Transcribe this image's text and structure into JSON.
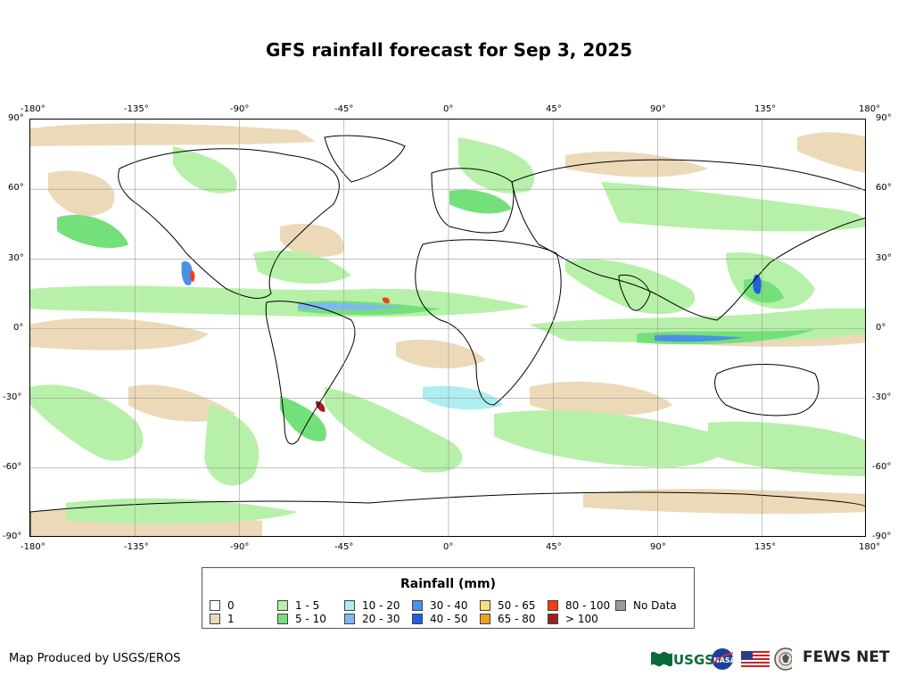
{
  "title": "GFS rainfall forecast for Sep 3, 2025",
  "axes": {
    "top_lon_labels": [
      "-180°",
      "-135°",
      "-90°",
      "-45°",
      "0°",
      "45°",
      "90°",
      "135°",
      "180°"
    ],
    "bottom_lon_labels": [
      "-180°",
      "-135°",
      "-90°",
      "-45°",
      "0°",
      "45°",
      "90°",
      "135°",
      "180°"
    ],
    "left_lat_labels": [
      "90°",
      "60°",
      "30°",
      "0°",
      "-30°",
      "-60°",
      "-90°"
    ],
    "right_lat_labels": [
      "90°",
      "60°",
      "30°",
      "0°",
      "-30°",
      "-60°",
      "-90°"
    ]
  },
  "map": {
    "projection": "equirectangular",
    "extent_lon": [
      -180,
      180
    ],
    "extent_lat": [
      -90,
      90
    ],
    "graticule": true
  },
  "legend": {
    "title": "Rainfall (mm)",
    "classes": [
      {
        "label": "0",
        "color": "#ffffff"
      },
      {
        "label": "1",
        "color": "#ecd9b8"
      },
      {
        "label": "1 - 5",
        "color": "#b7f0a8"
      },
      {
        "label": "5 - 10",
        "color": "#74e07a"
      },
      {
        "label": "10 - 20",
        "color": "#aeeef0"
      },
      {
        "label": "20 - 30",
        "color": "#7fb8f0"
      },
      {
        "label": "30 - 40",
        "color": "#4a90e8"
      },
      {
        "label": "40 - 50",
        "color": "#1f5fe0"
      },
      {
        "label": "50 - 65",
        "color": "#f4e07a"
      },
      {
        "label": "65 - 80",
        "color": "#f0a020"
      },
      {
        "label": "80 - 100",
        "color": "#f04010"
      },
      {
        "label": "> 100",
        "color": "#a02020"
      },
      {
        "label": "No Data",
        "color": "#999999"
      }
    ]
  },
  "footer": {
    "credit": "Map Produced by USGS/EROS",
    "logos": [
      "usgs-logo",
      "nasa-logo",
      "us-flag",
      "state-department-seal",
      "fews-net-logo"
    ],
    "fews_net_text": "FEWS NET"
  }
}
